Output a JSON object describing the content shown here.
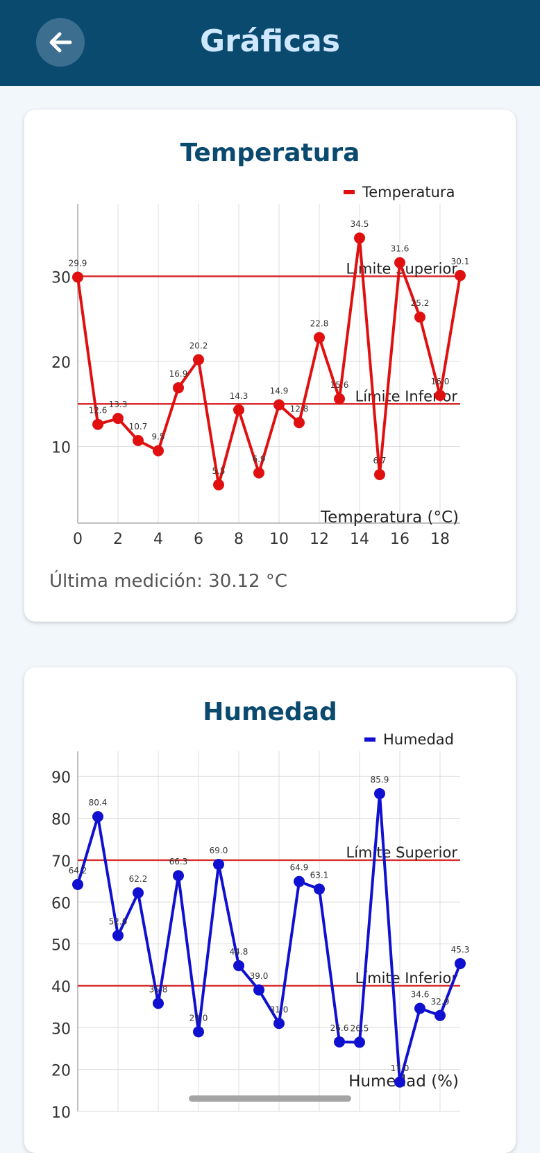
{
  "appbar": {
    "title": "Gráficas"
  },
  "cards": {
    "temperature": {
      "title": "Temperatura",
      "last_reading": "Última medición: 30.12 °C"
    },
    "humidity": {
      "title": "Humedad"
    }
  },
  "chart_data": [
    {
      "type": "line",
      "legend": "Temperatura",
      "legend_position": "top-right",
      "color": "#e01010",
      "x": [
        0,
        1,
        2,
        3,
        4,
        5,
        6,
        7,
        8,
        9,
        10,
        11,
        12,
        13,
        14,
        15,
        16,
        17,
        18,
        19
      ],
      "values": [
        29.9,
        12.6,
        13.3,
        10.7,
        9.5,
        16.9,
        20.2,
        5.5,
        14.3,
        6.9,
        14.9,
        12.8,
        22.8,
        15.6,
        34.5,
        6.7,
        31.6,
        25.2,
        16.0,
        30.1
      ],
      "point_labels": [
        "29.9",
        "12.6",
        "13.3",
        "10.7",
        "9.5",
        "16.9",
        "20.2",
        "5.5",
        "14.3",
        "6.9",
        "14.9",
        "12.8",
        "22.8",
        "15.6",
        "34.5",
        "6.7",
        "31.6",
        "25.2",
        "16.0",
        "30.1"
      ],
      "x_ticks": [
        "0",
        "2",
        "4",
        "6",
        "8",
        "10",
        "12",
        "14",
        "16",
        "18"
      ],
      "y_ticks": [
        "10",
        "20",
        "30"
      ],
      "xlim": [
        0,
        19
      ],
      "ylim": [
        1,
        38.5
      ],
      "limits": [
        {
          "label": "Límite Superior",
          "value": 30,
          "color": "#d83030"
        },
        {
          "label": "Límite Inferior",
          "value": 15,
          "color": "#d83030"
        }
      ],
      "xlabel": "Temperatura (°C)",
      "grid": true
    },
    {
      "type": "line",
      "legend": "Humedad",
      "legend_position": "top-right",
      "color": "#1010d0",
      "x": [
        0,
        1,
        2,
        3,
        4,
        5,
        6,
        7,
        8,
        9,
        10,
        11,
        12,
        13,
        14,
        15,
        16,
        17,
        18,
        19
      ],
      "values": [
        64.2,
        80.4,
        52.0,
        62.2,
        35.8,
        66.3,
        29.0,
        69.0,
        44.8,
        39.0,
        31.0,
        64.9,
        63.1,
        26.6,
        26.5,
        85.9,
        17.0,
        34.6,
        32.9,
        45.3
      ],
      "point_labels": [
        "64.2",
        "80.4",
        "52.0",
        "62.2",
        "35.8",
        "66.3",
        "29.0",
        "69.0",
        "44.8",
        "39.0",
        "31.0",
        "64.9",
        "63.1",
        "26.6",
        "26.5",
        "85.9",
        "17.0",
        "34.6",
        "32.9",
        "45.3"
      ],
      "x_ticks": [],
      "y_ticks": [
        "10",
        "20",
        "30",
        "40",
        "50",
        "60",
        "70",
        "80",
        "90"
      ],
      "xlim": [
        0,
        19
      ],
      "ylim": [
        10,
        96
      ],
      "limits": [
        {
          "label": "Límite Superior",
          "value": 70,
          "color": "#d83030"
        },
        {
          "label": "Límite Inferior",
          "value": 40,
          "color": "#d83030"
        }
      ],
      "xlabel": "Humedad (%)",
      "grid": true
    }
  ]
}
